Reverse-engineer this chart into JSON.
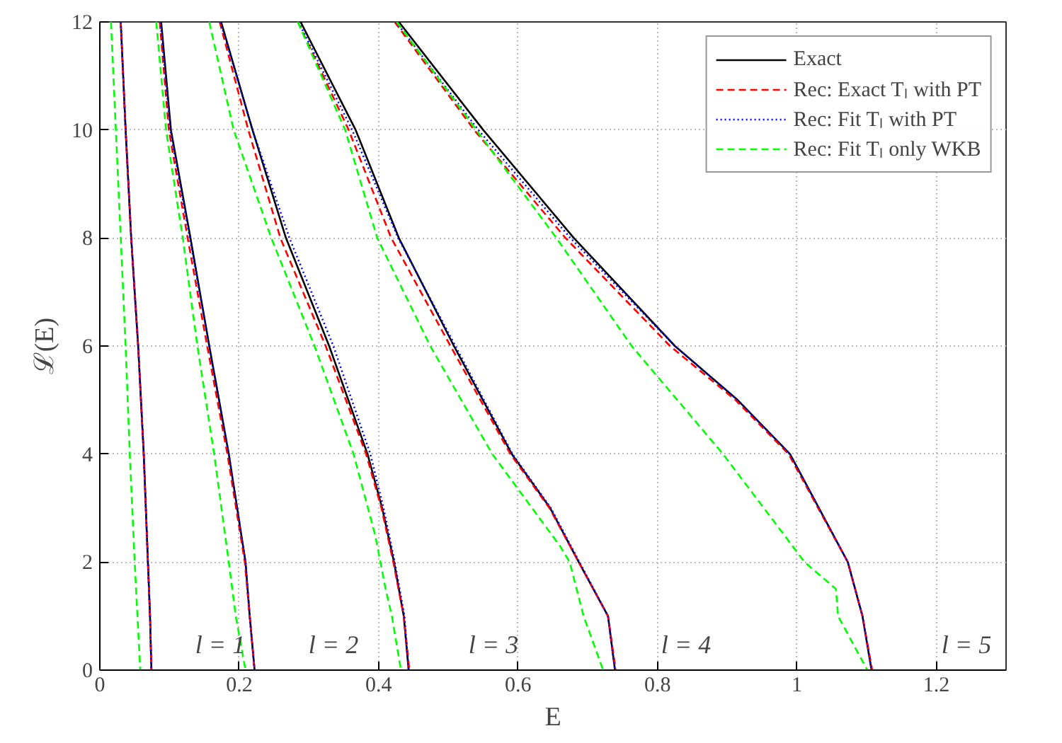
{
  "chart_data": {
    "type": "line",
    "xlabel": "E",
    "ylabel": "ℒ(E)",
    "xlim": [
      0,
      1.3
    ],
    "ylim": [
      0,
      12
    ],
    "xticks": [
      0,
      0.2,
      0.4,
      0.6,
      0.8,
      1,
      1.2
    ],
    "yticks": [
      0,
      2,
      4,
      6,
      8,
      10,
      12
    ],
    "grid": true,
    "legend": "top right",
    "marker": "none",
    "series": [
      {
        "name": "Exact",
        "color": "#000000",
        "line_style": "solid",
        "x": [
          0.03,
          0.037,
          0.045,
          0.055,
          0.063,
          0.069,
          0.072,
          0.074,
          null,
          0.088,
          0.102,
          0.13,
          0.157,
          0.185,
          0.209,
          0.215,
          0.222,
          null,
          0.174,
          0.219,
          0.267,
          0.329,
          0.384,
          0.405,
          0.422,
          0.436,
          0.443,
          null,
          0.288,
          0.367,
          0.429,
          0.508,
          0.591,
          0.646,
          0.687,
          0.729,
          0.739,
          null,
          0.429,
          0.55,
          0.68,
          0.825,
          0.915,
          0.99,
          1.073,
          1.094,
          1.107
        ],
        "values": [
          12,
          10,
          8,
          6,
          4,
          2,
          1,
          0,
          null,
          12,
          10,
          8,
          6,
          4,
          2,
          1,
          0,
          null,
          12,
          10,
          8,
          6,
          4,
          3,
          2,
          1,
          0,
          null,
          12,
          10,
          8,
          6,
          4,
          3,
          2,
          1,
          0,
          null,
          12,
          10,
          8,
          6,
          5,
          4,
          2,
          1,
          0
        ]
      },
      {
        "name": "Rec: Exact Tₗ with PT",
        "color": "#ff0000",
        "line_style": "dashed",
        "x": [
          0.03,
          0.037,
          0.045,
          0.055,
          0.063,
          0.069,
          0.072,
          0.074,
          null,
          0.086,
          0.099,
          0.126,
          0.154,
          0.183,
          0.208,
          0.215,
          0.222,
          null,
          0.172,
          0.213,
          0.259,
          0.324,
          0.382,
          0.404,
          0.421,
          0.436,
          0.444,
          null,
          0.284,
          0.357,
          0.418,
          0.503,
          0.589,
          0.645,
          0.687,
          0.729,
          0.74,
          null,
          0.423,
          0.537,
          0.668,
          0.818,
          0.912,
          0.988,
          1.073,
          1.094,
          1.108
        ],
        "values": [
          12,
          10,
          8,
          6,
          4,
          2,
          1,
          0,
          null,
          12,
          10,
          8,
          6,
          4,
          2,
          1,
          0,
          null,
          12,
          10,
          8,
          6,
          4,
          3,
          2,
          1,
          0,
          null,
          12,
          10,
          8,
          6,
          4,
          3,
          2,
          1,
          0,
          null,
          12,
          10,
          8,
          6,
          5,
          4,
          2,
          1,
          0
        ]
      },
      {
        "name": "Rec: Fit Tₗ with PT",
        "color": "#0000ff",
        "line_style": "dotted",
        "x": [
          0.03,
          0.037,
          0.045,
          0.055,
          0.063,
          0.069,
          0.072,
          0.074,
          null,
          0.087,
          0.101,
          0.129,
          0.157,
          0.185,
          0.209,
          0.215,
          0.222,
          null,
          0.173,
          0.219,
          0.272,
          0.335,
          0.388,
          0.407,
          0.423,
          0.437,
          0.443,
          null,
          0.285,
          0.362,
          0.428,
          0.51,
          0.592,
          0.647,
          0.688,
          0.729,
          0.739,
          null,
          0.425,
          0.543,
          0.675,
          0.825,
          0.915,
          0.99,
          1.073,
          1.094,
          1.107
        ],
        "values": [
          12,
          10,
          8,
          6,
          4,
          2,
          1,
          0,
          null,
          12,
          10,
          8,
          6,
          4,
          2,
          1,
          0,
          null,
          12,
          10,
          8,
          6,
          4,
          3,
          2,
          1,
          0,
          null,
          12,
          10,
          8,
          6,
          4,
          3,
          2,
          1,
          0,
          null,
          12,
          10,
          8,
          6,
          5,
          4,
          2,
          1,
          0
        ]
      },
      {
        "name": "Rec: Fit Tₗ only WKB",
        "color": "#00ff00",
        "line_style": "dashed",
        "x": [
          0.016,
          0.023,
          0.03,
          0.037,
          0.043,
          0.05,
          0.054,
          0.058,
          null,
          0.081,
          0.095,
          0.119,
          0.14,
          0.164,
          0.185,
          0.195,
          0.209,
          null,
          0.157,
          0.192,
          0.246,
          0.308,
          0.364,
          0.395,
          0.41,
          0.419,
          0.432,
          null,
          0.284,
          0.352,
          0.398,
          0.474,
          0.563,
          0.66,
          0.674,
          0.694,
          0.722,
          null,
          0.426,
          0.54,
          0.655,
          0.763,
          0.894,
          1.011,
          1.056,
          1.059,
          1.101
        ],
        "values": [
          12,
          10,
          8,
          6,
          4,
          2,
          1,
          0,
          null,
          12,
          10,
          8,
          6,
          4,
          2,
          1,
          0,
          null,
          12,
          10,
          8,
          6,
          4,
          2.5,
          1.5,
          1,
          0,
          null,
          12,
          10,
          8,
          6,
          4,
          2.3,
          2,
          1,
          0,
          null,
          12,
          10,
          8,
          6,
          4,
          2,
          1.5,
          1,
          0
        ]
      }
    ],
    "annotations": [
      "l = 1",
      "l = 2",
      "l = 3",
      "l = 4",
      "l = 5"
    ]
  }
}
